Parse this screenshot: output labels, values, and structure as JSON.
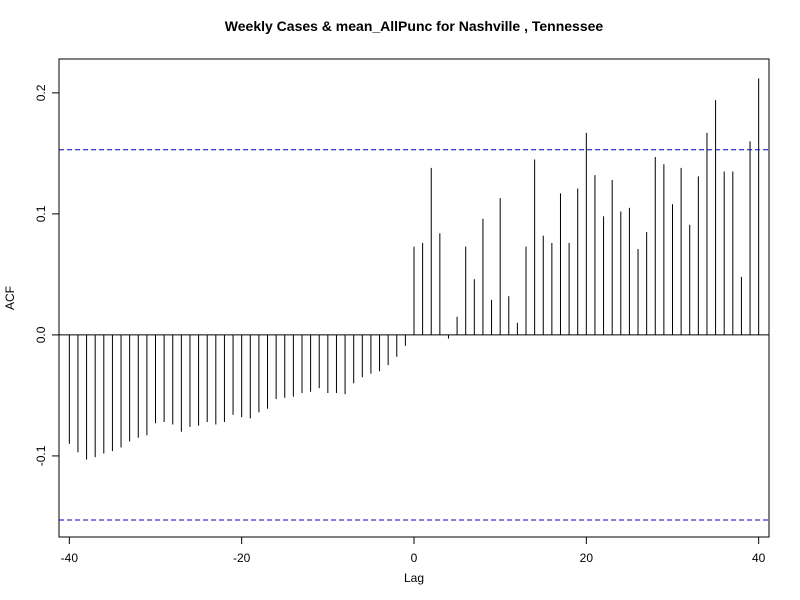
{
  "chart_data": {
    "type": "bar",
    "title": "Weekly Cases & mean_AllPunc for Nashville , Tennessee",
    "xlabel": "Lag",
    "ylabel": "ACF",
    "xlim": [
      -41.2,
      41.2
    ],
    "ylim": [
      -0.167,
      0.228
    ],
    "x_ticks": [
      -40,
      -20,
      0,
      20,
      40
    ],
    "y_ticks": [
      -0.1,
      0.0,
      0.1,
      0.2
    ],
    "x_tick_labels": [
      "-40",
      "-20",
      "0",
      "20",
      "40"
    ],
    "y_tick_labels": [
      "-0.1",
      "0.0",
      "0.1",
      "0.2"
    ],
    "confidence_band": 0.153,
    "confidence_color": "#0000cc",
    "line_color": "#000000",
    "series": [
      {
        "x": [
          -40,
          -39,
          -38,
          -37,
          -36,
          -35,
          -34,
          -33,
          -32,
          -31,
          -30,
          -29,
          -28,
          -27,
          -26,
          -25,
          -24,
          -23,
          -22,
          -21,
          -20,
          -19,
          -18,
          -17,
          -16,
          -15,
          -14,
          -13,
          -12,
          -11,
          -10,
          -9,
          -8,
          -7,
          -6,
          -5,
          -4,
          -3,
          -2,
          -1,
          0,
          1,
          2,
          3,
          4,
          5,
          6,
          7,
          8,
          9,
          10,
          11,
          12,
          13,
          14,
          15,
          16,
          17,
          18,
          19,
          20,
          21,
          22,
          23,
          24,
          25,
          26,
          27,
          28,
          29,
          30,
          31,
          32,
          33,
          34,
          35,
          36,
          37,
          38,
          39,
          40
        ],
        "values": [
          -0.09,
          -0.097,
          -0.103,
          -0.101,
          -0.098,
          -0.096,
          -0.093,
          -0.088,
          -0.085,
          -0.083,
          -0.073,
          -0.072,
          -0.074,
          -0.08,
          -0.076,
          -0.075,
          -0.072,
          -0.074,
          -0.072,
          -0.066,
          -0.068,
          -0.069,
          -0.064,
          -0.061,
          -0.053,
          -0.052,
          -0.051,
          -0.048,
          -0.047,
          -0.044,
          -0.048,
          -0.048,
          -0.049,
          -0.04,
          -0.035,
          -0.032,
          -0.03,
          -0.025,
          -0.018,
          -0.009,
          0.073,
          0.076,
          0.138,
          0.084,
          -0.003,
          0.015,
          0.073,
          0.046,
          0.096,
          0.029,
          0.113,
          0.032,
          0.01,
          0.073,
          0.145,
          0.082,
          0.076,
          0.117,
          0.076,
          0.121,
          0.167,
          0.132,
          0.098,
          0.128,
          0.102,
          0.105,
          0.071,
          0.085,
          0.147,
          0.141,
          0.108,
          0.138,
          0.091,
          0.131,
          0.167,
          0.194,
          0.135,
          0.135,
          0.048,
          0.16,
          0.212
        ]
      }
    ]
  }
}
